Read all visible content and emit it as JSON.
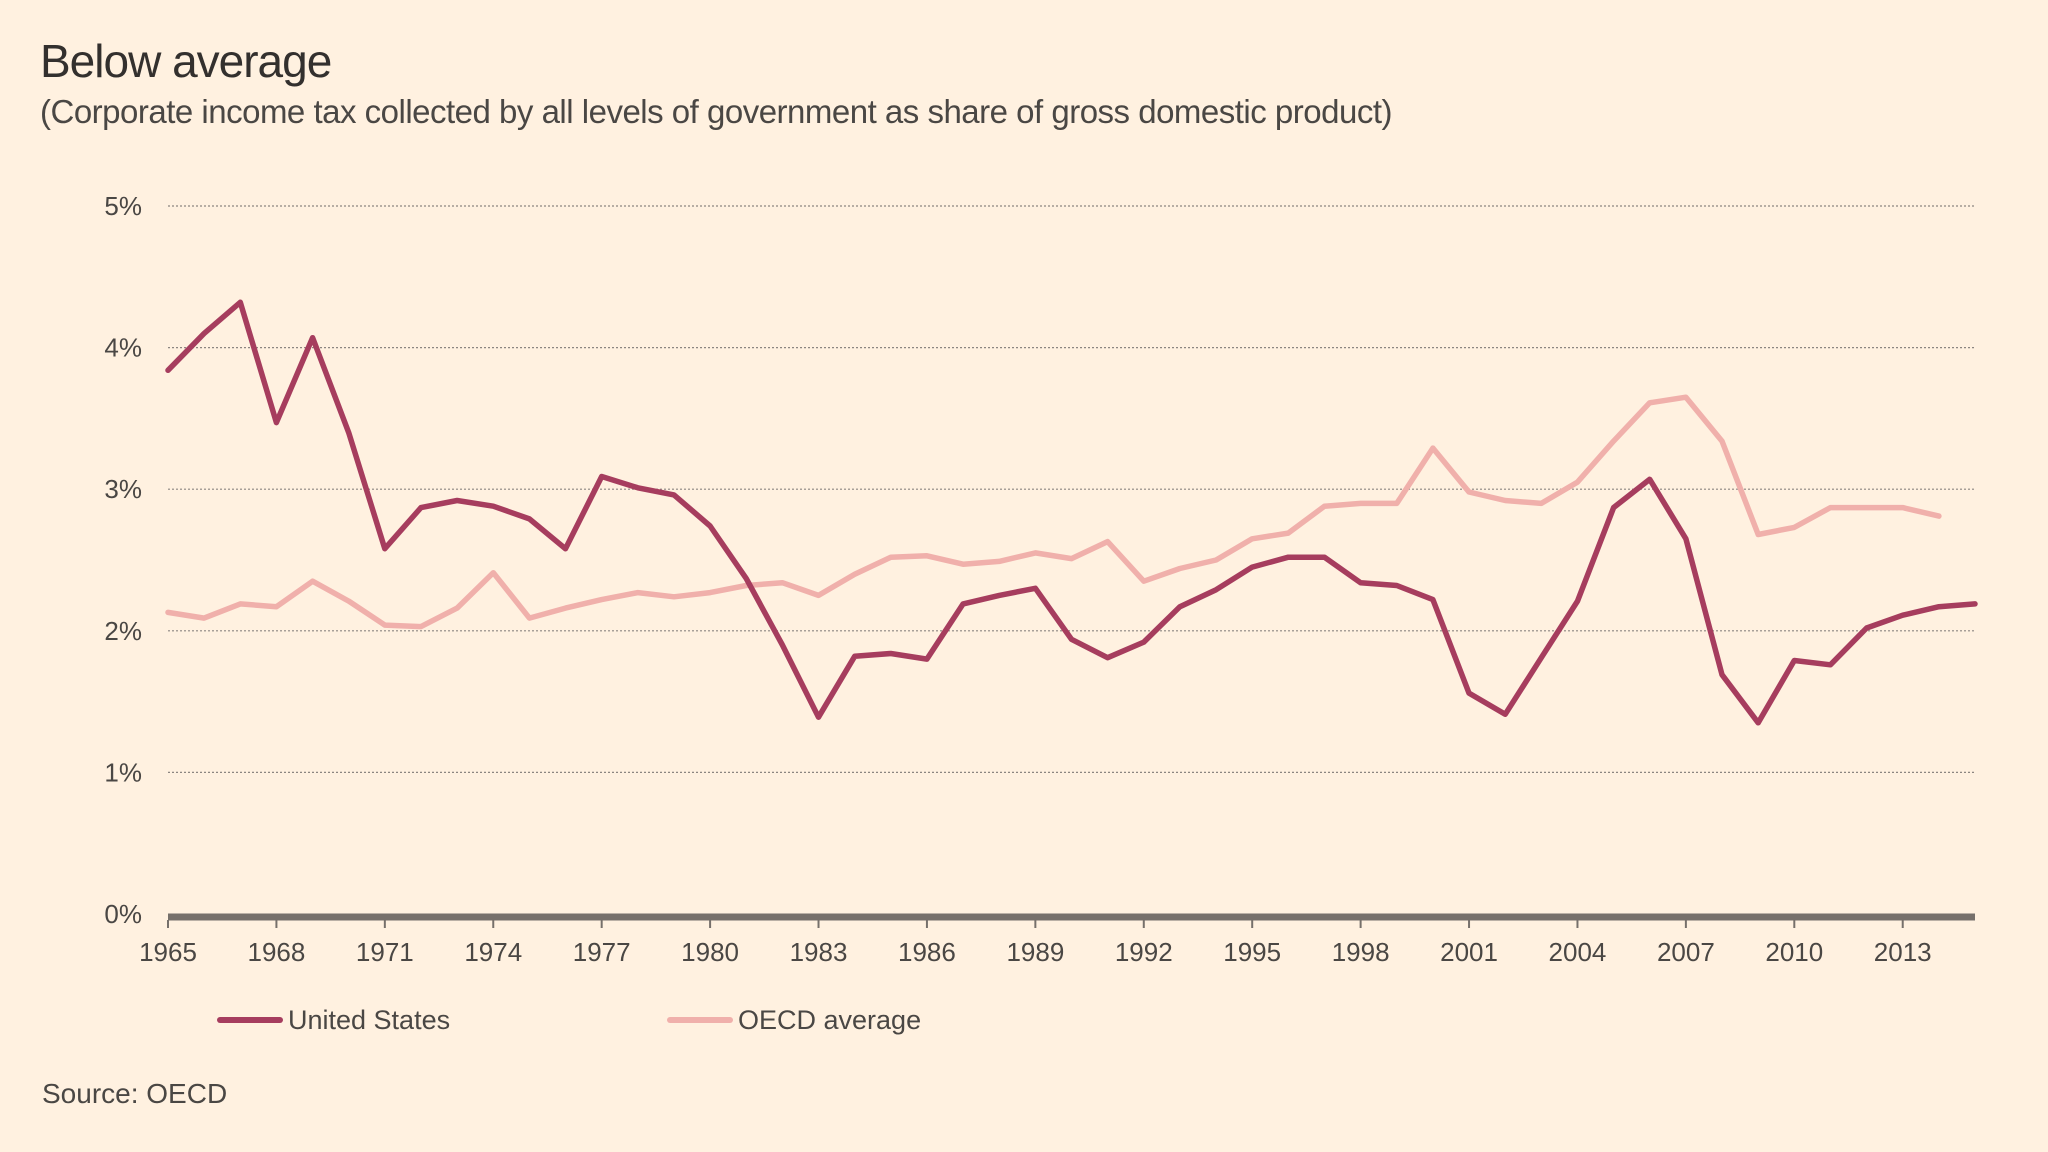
{
  "header": {
    "title": "Below average",
    "subtitle": "(Corporate income tax collected by all levels of government as share of gross domestic product)"
  },
  "footer": {
    "source": "Source: OECD"
  },
  "colors": {
    "background": "#fff1e0",
    "us": "#a63d5e",
    "oecd": "#f0b0ab",
    "grid": "#8c8681",
    "axis": "#76706b"
  },
  "chart_data": {
    "type": "line",
    "title": "Below average",
    "subtitle": "(Corporate income tax collected by all levels of government as share of gross domestic product)",
    "xlabel": "",
    "ylabel": "",
    "xlim": [
      1965,
      2015
    ],
    "ylim": [
      0,
      5
    ],
    "y_ticks": [
      0,
      1,
      2,
      3,
      4,
      5
    ],
    "y_tick_labels": [
      "0%",
      "1%",
      "2%",
      "3%",
      "4%",
      "5%"
    ],
    "x_ticks": [
      1965,
      1968,
      1971,
      1974,
      1977,
      1980,
      1983,
      1986,
      1989,
      1992,
      1995,
      1998,
      2001,
      2004,
      2007,
      2010,
      2013
    ],
    "x_tick_labels": [
      "1965",
      "1968",
      "1971",
      "1974",
      "1977",
      "1980",
      "1983",
      "1986",
      "1989",
      "1992",
      "1995",
      "1998",
      "2001",
      "2004",
      "2007",
      "2010",
      "2013"
    ],
    "grid": true,
    "legend": "bottom-left",
    "series": [
      {
        "name": "United States",
        "color": "#a63d5e",
        "x": [
          1965,
          1966,
          1967,
          1968,
          1969,
          1970,
          1971,
          1972,
          1973,
          1974,
          1975,
          1976,
          1977,
          1978,
          1979,
          1980,
          1981,
          1982,
          1983,
          1984,
          1985,
          1986,
          1987,
          1988,
          1989,
          1990,
          1991,
          1992,
          1993,
          1994,
          1995,
          1996,
          1997,
          1998,
          1999,
          2000,
          2001,
          2002,
          2003,
          2004,
          2005,
          2006,
          2007,
          2008,
          2009,
          2010,
          2011,
          2012,
          2013,
          2014,
          2015
        ],
        "values": [
          3.84,
          4.1,
          4.32,
          3.47,
          4.07,
          3.4,
          2.58,
          2.87,
          2.92,
          2.88,
          2.79,
          2.58,
          3.09,
          3.01,
          2.96,
          2.74,
          2.37,
          1.9,
          1.39,
          1.82,
          1.84,
          1.8,
          2.19,
          2.25,
          2.3,
          1.94,
          1.81,
          1.92,
          2.17,
          2.29,
          2.45,
          2.52,
          2.52,
          2.34,
          2.32,
          2.22,
          1.56,
          1.41,
          1.81,
          2.21,
          2.87,
          3.07,
          2.65,
          1.69,
          1.35,
          1.79,
          1.76,
          2.02,
          2.11,
          2.17,
          2.19
        ]
      },
      {
        "name": "OECD average",
        "color": "#f0b0ab",
        "x": [
          1965,
          1966,
          1967,
          1968,
          1969,
          1970,
          1971,
          1972,
          1973,
          1974,
          1975,
          1976,
          1977,
          1978,
          1979,
          1980,
          1981,
          1982,
          1983,
          1984,
          1985,
          1986,
          1987,
          1988,
          1989,
          1990,
          1991,
          1992,
          1993,
          1994,
          1995,
          1996,
          1997,
          1998,
          1999,
          2000,
          2001,
          2002,
          2003,
          2004,
          2005,
          2006,
          2007,
          2008,
          2009,
          2010,
          2011,
          2012,
          2013,
          2014
        ],
        "values": [
          2.13,
          2.09,
          2.19,
          2.17,
          2.35,
          2.21,
          2.04,
          2.03,
          2.16,
          2.41,
          2.09,
          2.16,
          2.22,
          2.27,
          2.24,
          2.27,
          2.32,
          2.34,
          2.25,
          2.4,
          2.52,
          2.53,
          2.47,
          2.49,
          2.55,
          2.51,
          2.63,
          2.35,
          2.44,
          2.5,
          2.65,
          2.69,
          2.88,
          2.9,
          2.9,
          3.29,
          2.98,
          2.92,
          2.9,
          3.05,
          3.34,
          3.61,
          3.65,
          3.34,
          2.68,
          2.73,
          2.87,
          2.87,
          2.87,
          2.81
        ]
      }
    ]
  }
}
